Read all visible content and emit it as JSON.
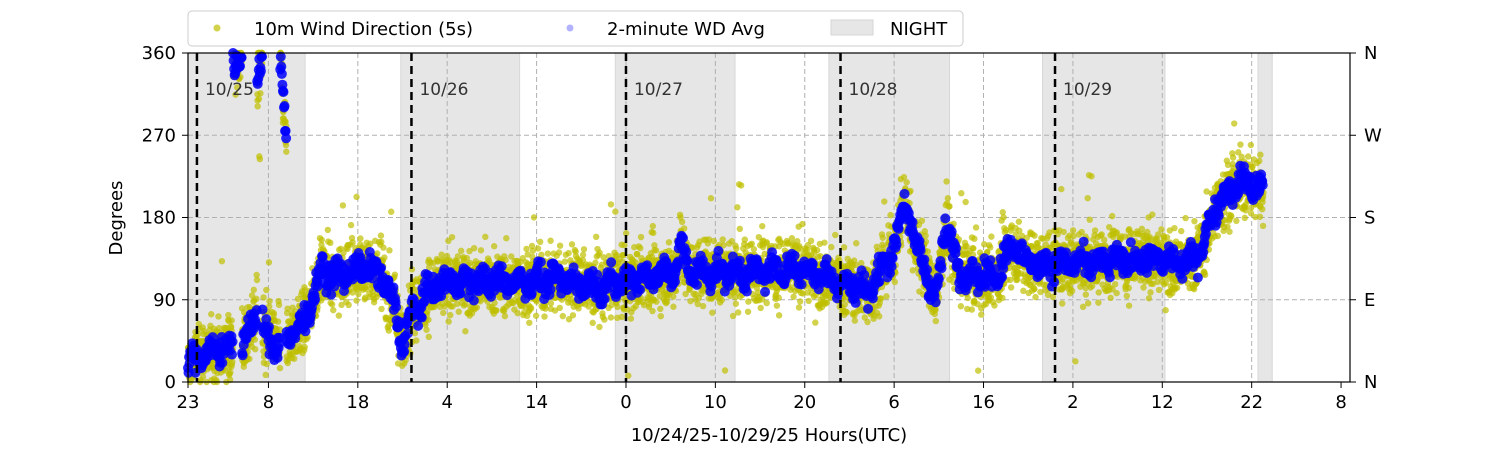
{
  "chart_data": {
    "type": "scatter",
    "title": "",
    "xlabel": "10/24/25-10/29/25  Hours(UTC)",
    "ylabel": "Degrees",
    "x_unit": "hours since 10/24 23:00 UTC",
    "xlim": [
      0,
      130
    ],
    "ylim": [
      0,
      360
    ],
    "x_ticks": [
      {
        "hour": 0,
        "label": "23"
      },
      {
        "hour": 9,
        "label": "8"
      },
      {
        "hour": 19,
        "label": "18"
      },
      {
        "hour": 29,
        "label": "4"
      },
      {
        "hour": 39,
        "label": "14"
      },
      {
        "hour": 49,
        "label": "0"
      },
      {
        "hour": 59,
        "label": "10"
      },
      {
        "hour": 69,
        "label": "20"
      },
      {
        "hour": 79,
        "label": "6"
      },
      {
        "hour": 89,
        "label": "16"
      },
      {
        "hour": 99,
        "label": "2"
      },
      {
        "hour": 109,
        "label": "12"
      },
      {
        "hour": 119,
        "label": "22"
      },
      {
        "hour": 129,
        "label": "8"
      }
    ],
    "y_ticks": [
      0,
      90,
      180,
      270,
      360
    ],
    "y2_ticks": [
      {
        "value": 0,
        "label": "N"
      },
      {
        "value": 90,
        "label": "E"
      },
      {
        "value": 180,
        "label": "S"
      },
      {
        "value": 270,
        "label": "W"
      },
      {
        "value": 360,
        "label": "N"
      }
    ],
    "grid": true,
    "legend": {
      "placement": "top",
      "entries": [
        "10m Wind Direction (5s)",
        "2-minute WD Avg",
        "NIGHT"
      ]
    },
    "colors": {
      "wd5s": "#bfbf00",
      "wd2min": "#0000ff",
      "night": "#e6e6e6"
    },
    "night_periods": [
      [
        0,
        13.1
      ],
      [
        23.8,
        37.1
      ],
      [
        47.8,
        61.2
      ],
      [
        71.7,
        85.2
      ],
      [
        95.6,
        109.3
      ],
      [
        119.7,
        121.3
      ]
    ],
    "midnights": [
      {
        "hour": 1,
        "label": "10/25"
      },
      {
        "hour": 25,
        "label": "10/26"
      },
      {
        "hour": 49,
        "label": "10/27"
      },
      {
        "hour": 73,
        "label": "10/28"
      },
      {
        "hour": 97,
        "label": "10/29"
      }
    ],
    "series": [
      {
        "name": "2-minute WD Avg",
        "trend": [
          [
            0,
            20
          ],
          [
            1.3,
            30
          ],
          [
            3,
            35
          ],
          [
            4.7,
            40
          ],
          [
            5.8,
            30
          ],
          [
            6.9,
            60
          ],
          [
            7.8,
            80
          ],
          [
            8.7,
            50
          ],
          [
            9.7,
            40
          ],
          [
            10.8,
            45
          ],
          [
            12.5,
            60
          ],
          [
            13.6,
            80
          ],
          [
            14.8,
            120
          ],
          [
            17,
            115
          ],
          [
            19.2,
            125
          ],
          [
            21.5,
            120
          ],
          [
            23.2,
            80
          ],
          [
            23.9,
            40
          ],
          [
            24.8,
            70
          ],
          [
            27,
            100
          ],
          [
            29.3,
            110
          ],
          [
            34.9,
            110
          ],
          [
            41.6,
            112
          ],
          [
            46.1,
            105
          ],
          [
            50.6,
            115
          ],
          [
            54.5,
            120
          ],
          [
            55,
            150
          ],
          [
            56.2,
            120
          ],
          [
            64,
            120
          ],
          [
            68.5,
            125
          ],
          [
            73,
            110
          ],
          [
            76.3,
            100
          ],
          [
            79.1,
            150
          ],
          [
            80.2,
            200
          ],
          [
            81.3,
            150
          ],
          [
            82.4,
            130
          ],
          [
            83.6,
            85
          ],
          [
            84.7,
            170
          ],
          [
            86.4,
            120
          ],
          [
            90.3,
            115
          ],
          [
            92,
            150
          ],
          [
            94.2,
            130
          ],
          [
            97.5,
            130
          ],
          [
            102,
            130
          ],
          [
            107.6,
            135
          ],
          [
            112,
            130
          ],
          [
            113.6,
            150
          ],
          [
            114.8,
            190
          ],
          [
            116.4,
            210
          ],
          [
            118.1,
            220
          ],
          [
            120.3,
            210
          ]
        ],
        "wrap_segments": [
          [
            5.0,
            6.0,
            345,
            355
          ],
          [
            7.7,
            8.3,
            330,
            350
          ],
          [
            10.3,
            11.0,
            355,
            265
          ]
        ]
      },
      {
        "name": "10m Wind Direction (5s)",
        "spread_deg": 45
      }
    ]
  }
}
